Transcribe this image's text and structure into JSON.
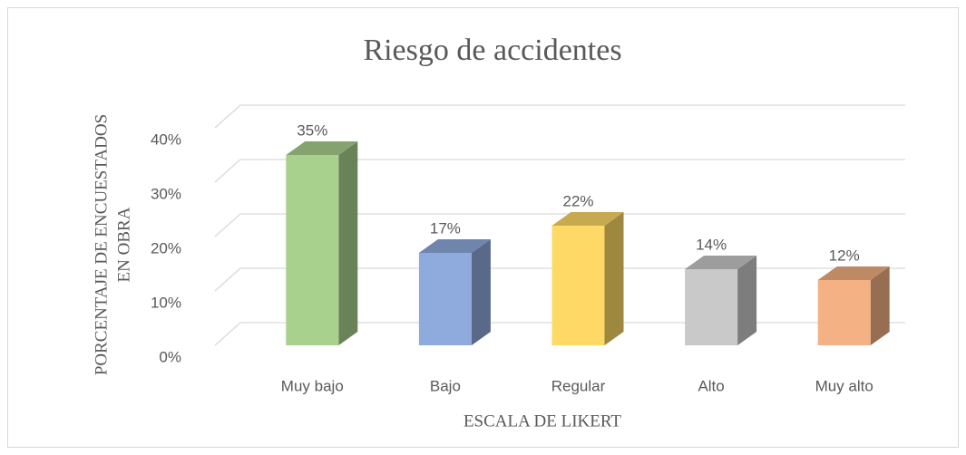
{
  "chart_data": {
    "type": "bar3d",
    "title": "Riesgo de accidentes",
    "categories": [
      "Muy bajo",
      "Bajo",
      "Regular",
      "Alto",
      "Muy alto"
    ],
    "values": [
      35,
      17,
      22,
      14,
      12
    ],
    "value_labels": [
      "35%",
      "17%",
      "22%",
      "14%",
      "12%"
    ],
    "colors": [
      "#a9d18e",
      "#8faadc",
      "#ffd966",
      "#c9c9c9",
      "#f4b183"
    ],
    "ylim": [
      0,
      40
    ],
    "yticks": [
      {
        "value": 0,
        "label": "0%"
      },
      {
        "value": 10,
        "label": "10%"
      },
      {
        "value": 20,
        "label": "20%"
      },
      {
        "value": 30,
        "label": "30%"
      },
      {
        "value": 40,
        "label": "40%"
      }
    ],
    "x_label": "ESCALA DE LIKERT",
    "y_label": [
      "PORCENTAJE DE ENCUESTADOS",
      "EN OBRA"
    ],
    "grid": true
  }
}
